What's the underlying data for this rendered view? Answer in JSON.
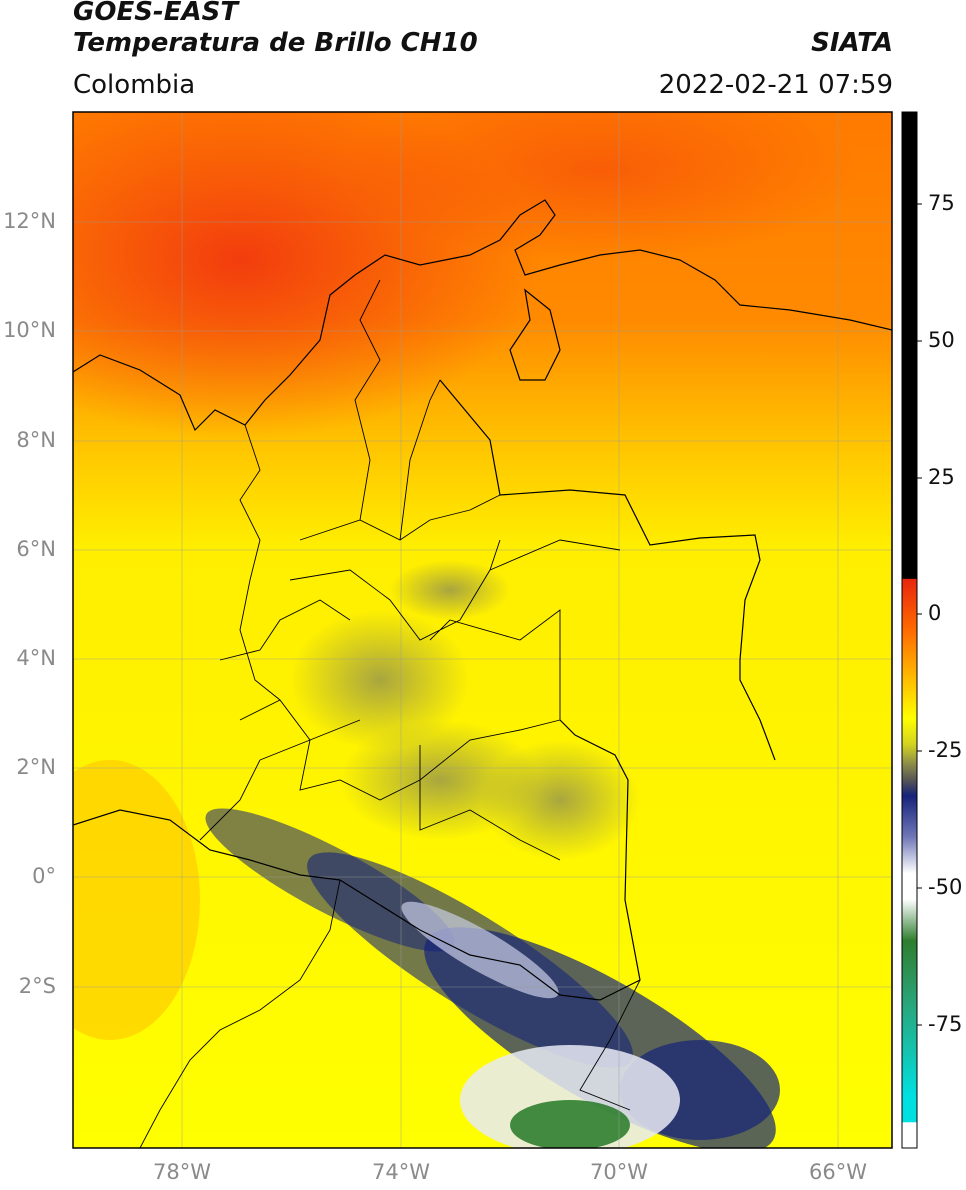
{
  "header": {
    "satellite": "GOES-EAST",
    "product": "Temperatura de Brillo CH10",
    "organization": "SIATA",
    "region": "Colombia",
    "timestamp": "2022-02-21 07:59"
  },
  "map": {
    "extent": {
      "lon": [
        -80,
        -65
      ],
      "lat": [
        -5,
        14
      ]
    },
    "lat_ticks": [
      "12°N",
      "10°N",
      "8°N",
      "6°N",
      "4°N",
      "2°N",
      "0°",
      "2°S"
    ],
    "lon_ticks": [
      "78°W",
      "74°W",
      "70°W",
      "66°W"
    ]
  },
  "colorbar": {
    "range": [
      -100,
      90
    ],
    "ticks": [
      "75",
      "50",
      "25",
      "0",
      "-25",
      "-50",
      "-75"
    ],
    "colors": {
      "above_10": "#000000",
      "warm_top": "#e8250e",
      "orange": "#ff8a00",
      "yellow": "#ffff00",
      "olive": "#8a8a4a",
      "navy": "#16237a",
      "white": "#ffffff",
      "green": "#2f7e2f",
      "cyan": "#00e0e0"
    }
  }
}
